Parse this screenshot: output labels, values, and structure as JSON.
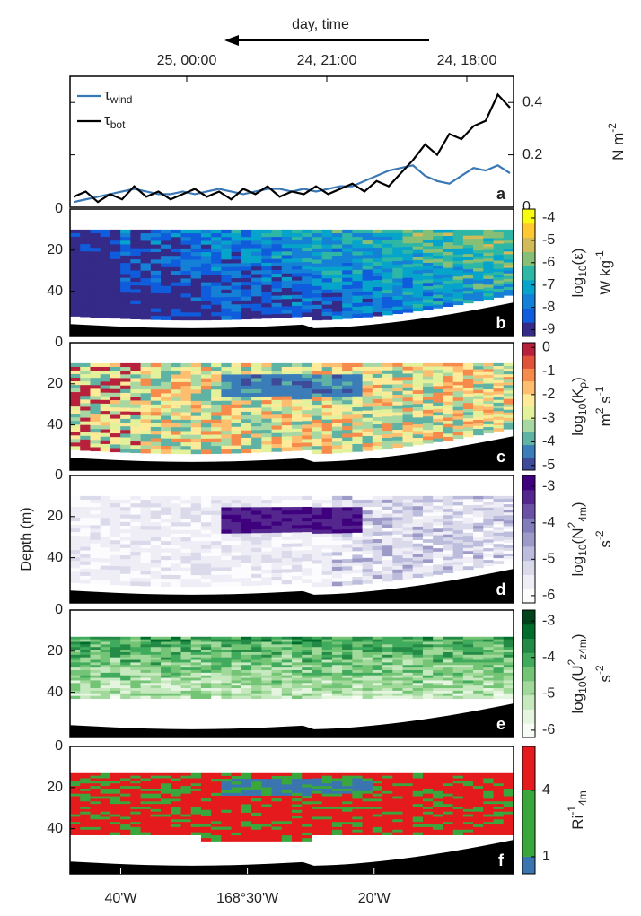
{
  "chart_data": [
    {
      "type": "line",
      "panel_label": "a",
      "x2_label": "day, time",
      "x2lim": [
        26.5,
        17
      ],
      "x2ticks": [
        {
          "value": 24,
          "label": "25, 00:00"
        },
        {
          "value": 21,
          "label": "24, 21:00"
        },
        {
          "value": 18,
          "label": "24, 18:00"
        }
      ],
      "y_label": [
        {
          "text": "N m"
        },
        {
          "text": "-2",
          "pos": "sup"
        }
      ],
      "ylim": [
        0,
        0.5
      ],
      "yticks": [
        0,
        0.2,
        0.4
      ],
      "legend": "upper left",
      "series": [
        {
          "name": "τwind",
          "color": "#3a78b5",
          "values": [
            0.02,
            0.03,
            0.04,
            0.05,
            0.06,
            0.07,
            0.06,
            0.05,
            0.05,
            0.06,
            0.05,
            0.06,
            0.07,
            0.06,
            0.05,
            0.06,
            0.07,
            0.07,
            0.06,
            0.07,
            0.06,
            0.07,
            0.08,
            0.08,
            0.1,
            0.12,
            0.14,
            0.15,
            0.16,
            0.12,
            0.1,
            0.09,
            0.12,
            0.15,
            0.14,
            0.16,
            0.13
          ]
        },
        {
          "name": "τbot",
          "color": "#000000",
          "values": [
            0.04,
            0.06,
            0.02,
            0.05,
            0.03,
            0.08,
            0.04,
            0.06,
            0.03,
            0.05,
            0.07,
            0.04,
            0.06,
            0.03,
            0.07,
            0.05,
            0.08,
            0.04,
            0.06,
            0.05,
            0.08,
            0.05,
            0.07,
            0.09,
            0.06,
            0.1,
            0.08,
            0.13,
            0.18,
            0.24,
            0.2,
            0.28,
            0.26,
            0.31,
            0.33,
            0.43,
            0.38
          ]
        }
      ]
    },
    {
      "type": "heatmap",
      "panel_label": "b",
      "ylim": [
        0,
        62
      ],
      "yticks": [
        0,
        20,
        40
      ],
      "colorbar": {
        "label": [
          {
            "text": "log"
          },
          {
            "text": "10",
            "pos": "sub"
          },
          {
            "text": "(ε)"
          }
        ],
        "units": [
          {
            "text": "W kg"
          },
          {
            "text": "-1",
            "pos": "sup"
          }
        ],
        "clim": [
          -9.3,
          -3.6
        ],
        "ticks": [
          -4,
          -5,
          -6,
          -7,
          -8,
          -9
        ],
        "colors": [
          "#352a87",
          "#0f5cdd",
          "#1481d6",
          "#06a4ca",
          "#2eb7a4",
          "#87bf77",
          "#d1bb59",
          "#fec832",
          "#f9fb0e"
        ]
      }
    },
    {
      "type": "heatmap",
      "panel_label": "c",
      "ylim": [
        0,
        62
      ],
      "yticks": [
        0,
        20,
        40
      ],
      "colorbar": {
        "label": [
          {
            "text": "log"
          },
          {
            "text": "10",
            "pos": "sub"
          },
          {
            "text": "(K"
          },
          {
            "text": "ρ",
            "pos": "sub"
          },
          {
            "text": ")"
          }
        ],
        "units": [
          {
            "text": "m"
          },
          {
            "text": "2",
            "pos": "sup"
          },
          {
            "text": " s"
          },
          {
            "text": "-1",
            "pos": "sup"
          }
        ],
        "clim": [
          -5.2,
          0.2
        ],
        "ticks": [
          0,
          -1,
          -2,
          -3,
          -4,
          -5
        ],
        "colors": [
          "#3e4a9a",
          "#3a7db8",
          "#5fb3a4",
          "#a7d8a4",
          "#e4f19b",
          "#fdeb9a",
          "#fdbf6f",
          "#f78b4c",
          "#e0533a",
          "#b8213c"
        ]
      }
    },
    {
      "type": "heatmap",
      "panel_label": "d",
      "ylim": [
        0,
        62
      ],
      "yticks": [
        0,
        20,
        40
      ],
      "y_label": "Depth (m)",
      "colorbar": {
        "label": [
          {
            "text": "log"
          },
          {
            "text": "10",
            "pos": "sub"
          },
          {
            "text": "(N"
          },
          {
            "text": "2",
            "pos": "sup"
          },
          {
            "text": "4m",
            "pos": "sub"
          },
          {
            "text": ")"
          }
        ],
        "units": [
          {
            "text": "s"
          },
          {
            "text": "-2",
            "pos": "sup"
          }
        ],
        "clim": [
          -6.2,
          -2.7
        ],
        "ticks": [
          -3,
          -4,
          -5,
          -6
        ],
        "colors": [
          "#fcfbfd",
          "#efedf5",
          "#dadaeb",
          "#bcbddc",
          "#9e9ac8",
          "#807dba",
          "#6a51a3",
          "#54278f",
          "#3f007d"
        ]
      }
    },
    {
      "type": "heatmap",
      "panel_label": "e",
      "ylim": [
        0,
        62
      ],
      "yticks": [
        0,
        20,
        40
      ],
      "colorbar": {
        "label": [
          {
            "text": "log"
          },
          {
            "text": "10",
            "pos": "sub"
          },
          {
            "text": "(U"
          },
          {
            "text": "2",
            "pos": "sup"
          },
          {
            "text": "z4m",
            "pos": "sub"
          },
          {
            "text": ")"
          }
        ],
        "units": [
          {
            "text": "s"
          },
          {
            "text": "-2",
            "pos": "sup"
          }
        ],
        "clim": [
          -6.2,
          -2.7
        ],
        "ticks": [
          -3,
          -4,
          -5,
          -6
        ],
        "colors": [
          "#f7fcf5",
          "#e5f5e0",
          "#c7e9c0",
          "#a1d99b",
          "#74c476",
          "#41ab5d",
          "#238b45",
          "#006d2c",
          "#00441b"
        ]
      }
    },
    {
      "type": "heatmap",
      "panel_label": "f",
      "ylim": [
        0,
        62
      ],
      "yticks": [
        0,
        20,
        40
      ],
      "xlim": [
        44,
        9
      ],
      "xticks": [
        {
          "value": 40,
          "label": "40'W"
        },
        {
          "value": 30,
          "label": "168°30'W"
        },
        {
          "value": 20,
          "label": "20'W"
        }
      ],
      "colorbar": {
        "label": [
          {
            "text": "Ri"
          },
          {
            "text": "-1",
            "pos": "sup"
          },
          {
            "text": "4m",
            "pos": "sub"
          }
        ],
        "log_scale": true,
        "clim": [
          0.7,
          10
        ],
        "ticks": [
          4,
          1
        ],
        "colors": [
          "#3b75af",
          "#3aa73c",
          "#e41a1c"
        ]
      }
    }
  ]
}
